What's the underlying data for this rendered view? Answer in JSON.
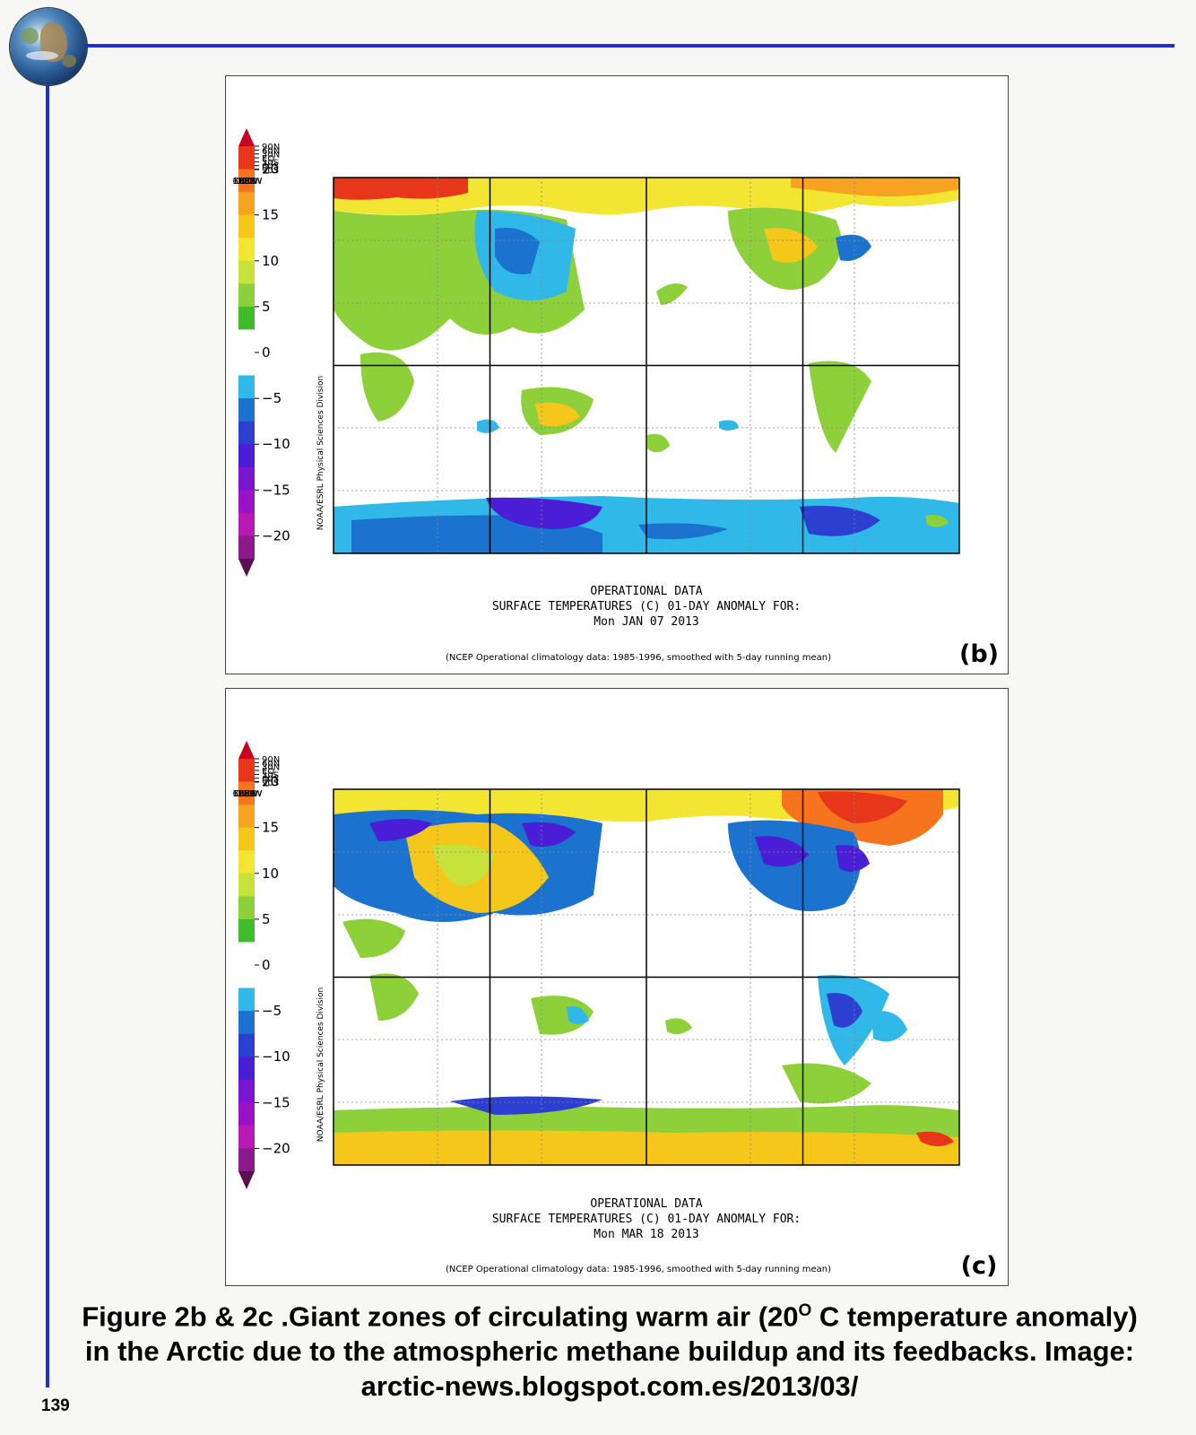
{
  "page_number": "139",
  "panels": [
    {
      "id": "b",
      "label": "(b)",
      "title_line1": "OPERATIONAL  DATA",
      "title_line2": "SURFACE  TEMPERATURES  (C)     01-DAY  ANOMALY  FOR:",
      "title_line3": "Mon  JAN  07  2013",
      "footnote": "(NCEP  Operational  climatology  data:  1985-1996,  smoothed  with  5-day  running  mean)",
      "credit": "NOAA/ESRL  Physical  Sciences  Division"
    },
    {
      "id": "c",
      "label": "(c)",
      "title_line1": "OPERATIONAL  DATA",
      "title_line2": "SURFACE  TEMPERATURES  (C)     01-DAY  ANOMALY  FOR:",
      "title_line3": "Mon  MAR  18  2013",
      "footnote": "(NCEP  Operational  climatology  data:  1985-1996,  smoothed  with  5-day  running  mean)",
      "credit": "NOAA/ESRL  Physical  Sciences  Division"
    }
  ],
  "colorbar": {
    "tick_labels": [
      "20",
      "15",
      "10",
      "5",
      "0",
      "-5",
      "-10",
      "-15",
      "-20"
    ],
    "colors": [
      "#c6001e",
      "#e8361b",
      "#f7741e",
      "#f7a321",
      "#f5c71a",
      "#f3e633",
      "#c7e23b",
      "#8dd03a",
      "#3fbb2c",
      "#ffffff",
      "#ffffff",
      "#2fb8e8",
      "#1c73cf",
      "#2c3fd0",
      "#4a1ed6",
      "#7b16d0",
      "#9a12c6",
      "#b81ab4",
      "#8c1a8a",
      "#5a1050"
    ]
  },
  "map_axes": {
    "x_labels": [
      "0",
      "60E",
      "120E",
      "180",
      "120W",
      "60W",
      "0"
    ],
    "y_labels": [
      "90N",
      "60N",
      "30N",
      "EQ",
      "30S",
      "60S",
      "90S"
    ]
  },
  "caption": {
    "part1": "Figure  2b & 2c .Giant zones of circulating warm air (20",
    "sup": "O",
    "part2": " C temperature anomaly) in the Arctic due to the atmospheric methane buildup and its feedbacks. Image: arctic-news.blogspot.com.es/2013/03/"
  }
}
